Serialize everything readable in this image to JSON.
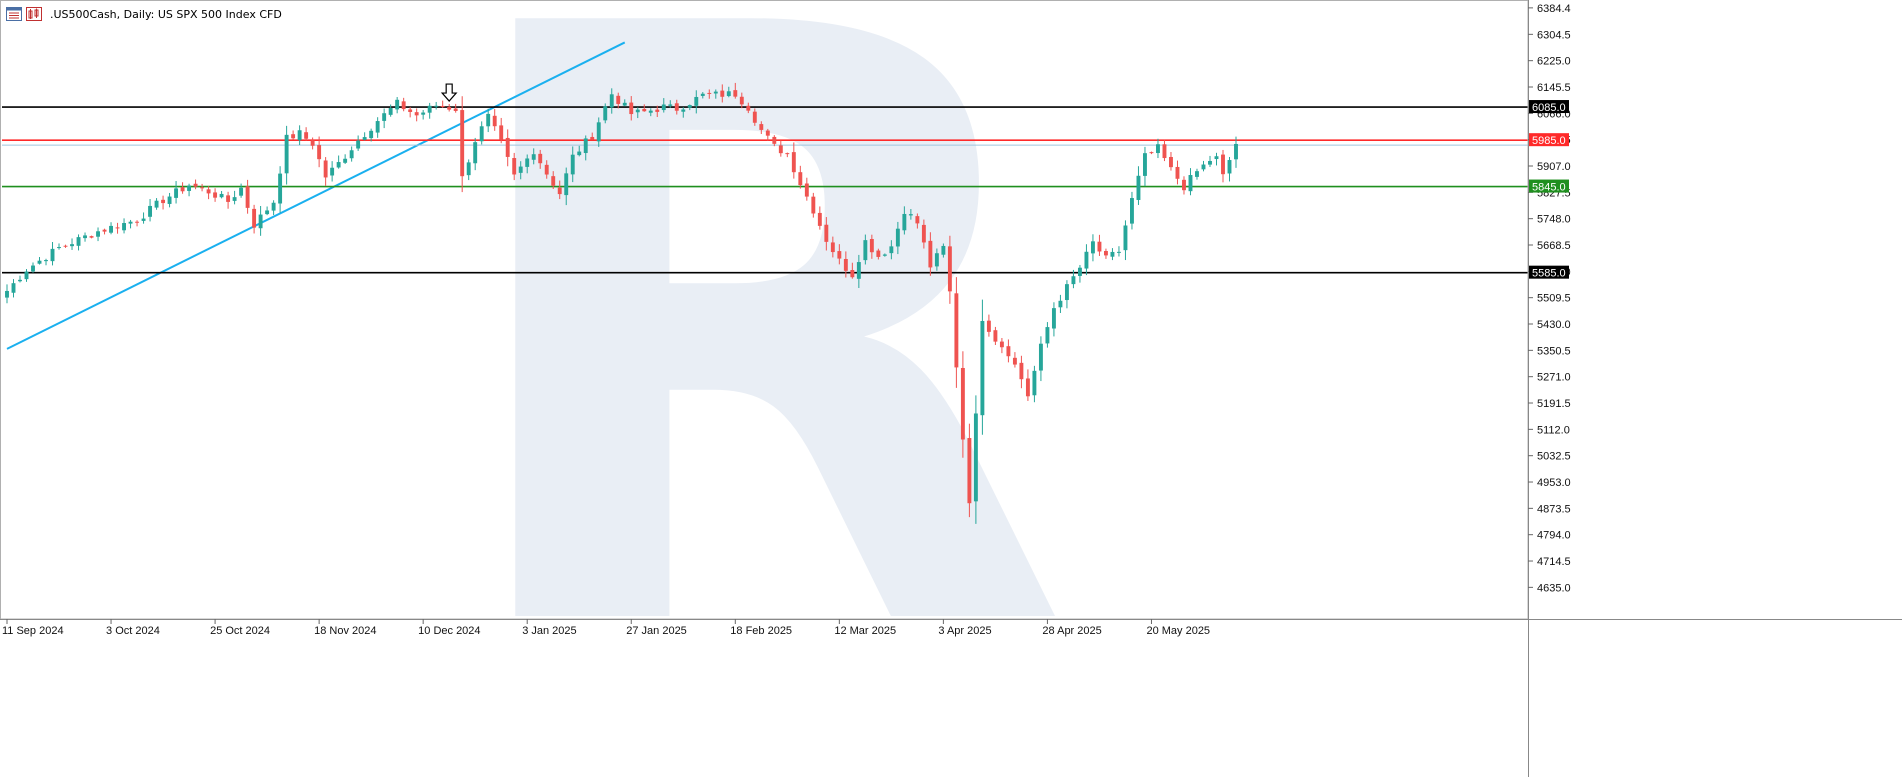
{
  "window": {
    "symbol": ".US500Cash",
    "timeframe": "Daily",
    "description": "US SPX 500 Index CFD",
    "title_text": ".US500Cash, Daily:  US SPX 500 Index CFD"
  },
  "colors": {
    "bull": "#26a69a",
    "bear": "#ef5350",
    "trendline": "#1ab0ef",
    "level_black": "#000000",
    "level_red": "#ff2a2a",
    "level_green": "#1f8f1f",
    "current_price": "#9fc6df",
    "watermark": "#e9eef5"
  },
  "chart_data": {
    "type": "candlestick",
    "ylim": [
      4595.0,
      6384.0
    ],
    "y_ticks": [
      6384.4,
      6304.5,
      6225.0,
      6145.5,
      6066.0,
      5986.5,
      5907.0,
      5827.5,
      5748.0,
      5668.5,
      5589.0,
      5509.5,
      5430.0,
      5350.5,
      5271.0,
      5191.5,
      5112.0,
      5032.5,
      4953.0,
      4873.5,
      4794.0,
      4714.5,
      4635.0
    ],
    "y_tick_labels": [
      "6384.4",
      "6304.5",
      "6225.0",
      "6145.5",
      "6066.0",
      "5986.5",
      "5907.0",
      "5827.5",
      "5748.0",
      "5668.5",
      "5589.0",
      "5509.5",
      "5430.0",
      "5350.5",
      "5271.0",
      "5191.5",
      "5112.0",
      "5032.5",
      "4953.0",
      "4873.5",
      "4794.0",
      "4714.5",
      "4635.0"
    ],
    "x_labels": [
      "11 Sep 2024",
      "3 Oct 2024",
      "25 Oct 2024",
      "18 Nov 2024",
      "10 Dec 2024",
      "3 Jan 2025",
      "27 Jan 2025",
      "18 Feb 2025",
      "12 Mar 2025",
      "3 Apr 2025",
      "28 Apr 2025",
      "20 May 2025"
    ],
    "x_label_bar_index": [
      0,
      16,
      32,
      48,
      64,
      80,
      96,
      112,
      128,
      144,
      160,
      176
    ],
    "bar_count": 190,
    "horizontal_levels": [
      {
        "label": "6085.0",
        "value": 6085.0,
        "color": "#000000"
      },
      {
        "label": "5985.0",
        "value": 5985.0,
        "color": "#ff2a2a"
      },
      {
        "label": "5845.0",
        "value": 5845.0,
        "color": "#1f8f1f"
      },
      {
        "label": "5585.0",
        "value": 5585.0,
        "color": "#000000"
      }
    ],
    "current_price": 5970.0,
    "trendline": {
      "from": {
        "bar": 0,
        "price": 5355.0
      },
      "to": {
        "bar": 95,
        "price": 6280.0
      }
    },
    "arrow_marker": {
      "bar": 68,
      "price": 6100.0
    },
    "watermark_text": "R",
    "anchors": [
      [
        0,
        5530
      ],
      [
        3,
        5595
      ],
      [
        8,
        5660
      ],
      [
        14,
        5710
      ],
      [
        20,
        5745
      ],
      [
        24,
        5805
      ],
      [
        28,
        5850
      ],
      [
        31,
        5830
      ],
      [
        34,
        5800
      ],
      [
        36,
        5840
      ],
      [
        38,
        5730
      ],
      [
        41,
        5800
      ],
      [
        43,
        5990
      ],
      [
        45,
        6005
      ],
      [
        47,
        5975
      ],
      [
        49,
        5875
      ],
      [
        51,
        5915
      ],
      [
        54,
        5985
      ],
      [
        57,
        6045
      ],
      [
        60,
        6095
      ],
      [
        63,
        6060
      ],
      [
        66,
        6090
      ],
      [
        69,
        6080
      ],
      [
        70,
        5870
      ],
      [
        72,
        5985
      ],
      [
        74,
        6055
      ],
      [
        76,
        5975
      ],
      [
        78,
        5875
      ],
      [
        81,
        5955
      ],
      [
        83,
        5885
      ],
      [
        85,
        5825
      ],
      [
        87,
        5935
      ],
      [
        90,
        6000
      ],
      [
        92,
        6085
      ],
      [
        93,
        6125
      ],
      [
        96,
        6065
      ],
      [
        98,
        6070
      ],
      [
        101,
        6085
      ],
      [
        103,
        6080
      ],
      [
        107,
        6120
      ],
      [
        112,
        6125
      ],
      [
        114,
        6085
      ],
      [
        116,
        6015
      ],
      [
        118,
        5965
      ],
      [
        120,
        5945
      ],
      [
        122,
        5855
      ],
      [
        124,
        5775
      ],
      [
        126,
        5685
      ],
      [
        128,
        5620
      ],
      [
        130,
        5580
      ],
      [
        132,
        5680
      ],
      [
        134,
        5635
      ],
      [
        136,
        5665
      ],
      [
        138,
        5775
      ],
      [
        140,
        5735
      ],
      [
        142,
        5605
      ],
      [
        144,
        5660
      ],
      [
        145,
        5525
      ],
      [
        147,
        5085
      ],
      [
        148,
        4900
      ],
      [
        149,
        5150
      ],
      [
        150,
        5450
      ],
      [
        152,
        5385
      ],
      [
        154,
        5345
      ],
      [
        156,
        5265
      ],
      [
        157,
        5215
      ],
      [
        159,
        5360
      ],
      [
        161,
        5480
      ],
      [
        163,
        5540
      ],
      [
        165,
        5600
      ],
      [
        167,
        5675
      ],
      [
        169,
        5625
      ],
      [
        171,
        5650
      ],
      [
        173,
        5805
      ],
      [
        175,
        5935
      ],
      [
        177,
        5960
      ],
      [
        179,
        5895
      ],
      [
        181,
        5845
      ],
      [
        183,
        5890
      ],
      [
        185,
        5925
      ],
      [
        186,
        5930
      ],
      [
        187,
        5875
      ],
      [
        189,
        5975
      ]
    ]
  }
}
